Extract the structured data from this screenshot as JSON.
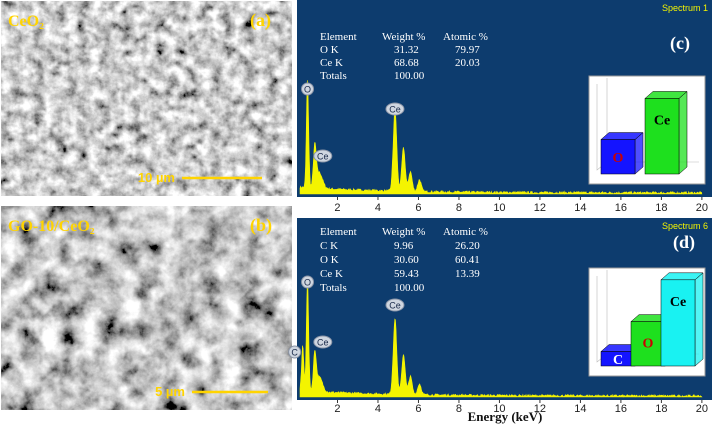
{
  "sem_panels": [
    {
      "sample": "CeO₂",
      "panel_label": "(a)",
      "scale_bar": "10 µm"
    },
    {
      "sample": "GO-10/CeO₂",
      "panel_label": "(b)",
      "scale_bar": "5 µm"
    }
  ],
  "spectra": [
    {
      "panel_label": "(c)",
      "spectrum_name": "Spectrum 1",
      "table": {
        "header": [
          "Element",
          "Weight %",
          "Atomic %"
        ],
        "rows": [
          [
            "O K",
            "31.32",
            "79.97"
          ],
          [
            "Ce K",
            "68.68",
            "20.03"
          ],
          [
            "Totals",
            "100.00"
          ]
        ]
      },
      "peaks": [
        {
          "label": "O",
          "x": 0.52
        },
        {
          "label": "Ce",
          "x": 0.88
        },
        {
          "label": "Ce",
          "x": 4.84
        }
      ],
      "inset_bars": [
        {
          "label": "O",
          "row": 0,
          "color": "#1414ff",
          "label_color": "#cc0000"
        },
        {
          "label": "Ce",
          "row": 1,
          "color": "#1ee01e",
          "label_color": "#000000"
        }
      ],
      "xlim": [
        0,
        20.5
      ],
      "xticks": [
        2,
        4,
        6,
        8,
        10,
        12,
        14,
        16,
        18,
        20
      ]
    },
    {
      "panel_label": "(d)",
      "spectrum_name": "Spectrum 6",
      "table": {
        "header": [
          "Element",
          "Weight %",
          "Atomic %"
        ],
        "rows": [
          [
            "C K",
            "9.96",
            "26.20"
          ],
          [
            "O K",
            "30.60",
            "60.41"
          ],
          [
            "Ce K",
            "59.43",
            "13.39"
          ],
          [
            "Totals",
            "100.00"
          ]
        ]
      },
      "peaks": [
        {
          "label": "O",
          "x": 0.52
        },
        {
          "label": "C",
          "x": 0.28
        },
        {
          "label": "Ce",
          "x": 0.88
        },
        {
          "label": "Ce",
          "x": 4.84
        }
      ],
      "inset_bars": [
        {
          "label": "C",
          "row": 0,
          "color": "#1414ff",
          "label_color": "#ffffff"
        },
        {
          "label": "O",
          "row": 1,
          "color": "#1ee01e",
          "label_color": "#cc0000"
        },
        {
          "label": "Ce",
          "row": 2,
          "color": "#19f2f2",
          "label_color": "#000000"
        }
      ],
      "xlim": [
        0,
        20.5
      ],
      "xticks": [
        2,
        4,
        6,
        8,
        10,
        12,
        14,
        16,
        18,
        20
      ],
      "x_label": "Energy (keV)"
    }
  ]
}
